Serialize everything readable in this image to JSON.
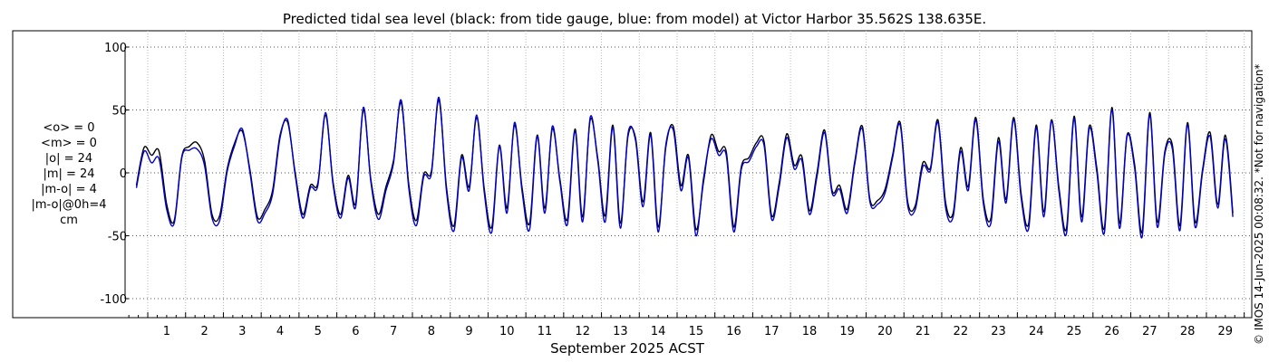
{
  "chart_data": {
    "type": "line",
    "title": "Predicted tidal sea level (black: from tide gauge, blue: from model) at Victor Harbor 35.562S 138.635E.",
    "xlabel": "September 2025 ACST",
    "ylabel": "",
    "x_unit": "day of September 2025",
    "xlim": [
      0.4,
      30.2
    ],
    "ylim": [
      -105,
      105
    ],
    "x_ticks": [
      1,
      2,
      3,
      4,
      5,
      6,
      7,
      8,
      9,
      10,
      11,
      12,
      13,
      14,
      15,
      16,
      17,
      18,
      19,
      20,
      21,
      22,
      23,
      24,
      25,
      26,
      27,
      28,
      29
    ],
    "y_ticks": [
      -100,
      -50,
      0,
      50,
      100
    ],
    "grid": true,
    "x_step": 0.1,
    "series": [
      {
        "name": "from tide gauge",
        "color": "#000000",
        "x_start": 0.7,
        "values": [
          -10,
          20,
          14,
          17,
          -25,
          -38,
          13,
          21,
          24,
          10,
          -33,
          -34,
          3,
          24,
          33,
          3,
          -35,
          -29,
          -14,
          30,
          40,
          0,
          -33,
          -10,
          -8,
          46,
          -7,
          -33,
          -2,
          -24,
          50,
          -5,
          -33,
          -11,
          10,
          56,
          -8,
          -38,
          -1,
          1,
          58,
          -11,
          -42,
          14,
          -11,
          44,
          -13,
          -43,
          22,
          -28,
          38,
          -12,
          -40,
          30,
          -28,
          35,
          -5,
          -37,
          35,
          -35,
          42,
          12,
          -34,
          38,
          -40,
          29,
          28,
          -23,
          32,
          -43,
          20,
          37,
          -10,
          14,
          -45,
          -7,
          30,
          17,
          17,
          -43,
          5,
          12,
          24,
          25,
          -34,
          -8,
          31,
          6,
          13,
          -30,
          0,
          34,
          -14,
          -10,
          -29,
          9,
          37,
          -21,
          -22,
          -13,
          14,
          40,
          -23,
          -26,
          8,
          4,
          42,
          -23,
          -32,
          20,
          -11,
          44,
          -21,
          -36,
          28,
          -21,
          44,
          -17,
          -40,
          38,
          -31,
          42,
          -12,
          -44,
          45,
          -35,
          37,
          4,
          -44,
          52,
          -40,
          30,
          7,
          -47,
          48,
          -39,
          17,
          22,
          -42,
          40,
          -39,
          3,
          32,
          -25,
          30,
          -32
        ]
      },
      {
        "name": "from model",
        "color": "#0000cc",
        "x_start": 0.7,
        "values": [
          -12,
          17,
          8,
          11,
          -29,
          -40,
          12,
          18,
          19,
          6,
          -36,
          -38,
          1,
          22,
          35,
          1,
          -38,
          -32,
          -17,
          28,
          42,
          -2,
          -36,
          -12,
          -10,
          48,
          -9,
          -36,
          -4,
          -27,
          52,
          -7,
          -37,
          -14,
          8,
          58,
          -11,
          -42,
          -3,
          -1,
          60,
          -14,
          -46,
          12,
          -14,
          46,
          -16,
          -47,
          21,
          -32,
          40,
          -15,
          -45,
          29,
          -32,
          37,
          -7,
          -41,
          33,
          -39,
          44,
          10,
          -39,
          36,
          -44,
          31,
          26,
          -27,
          30,
          -47,
          22,
          34,
          -14,
          12,
          -50,
          -4,
          27,
          14,
          14,
          -47,
          3,
          9,
          21,
          22,
          -37,
          -11,
          28,
          3,
          10,
          -33,
          -3,
          32,
          -16,
          -13,
          -32,
          7,
          35,
          -23,
          -25,
          -16,
          12,
          38,
          -26,
          -29,
          5,
          2,
          40,
          -27,
          -35,
          17,
          -14,
          42,
          -24,
          -40,
          25,
          -24,
          42,
          -20,
          -44,
          36,
          -35,
          41,
          -15,
          -48,
          43,
          -39,
          35,
          1,
          -48,
          50,
          -44,
          29,
          4,
          -51,
          46,
          -43,
          15,
          19,
          -46,
          38,
          -43,
          1,
          29,
          -28,
          27,
          -35
        ]
      }
    ]
  },
  "stats": {
    "mean_obs": "<o> = 0",
    "mean_model": "<m> = 0",
    "abs_obs": "|o| = 24",
    "abs_model": "|m| = 24",
    "abs_diff": "|m-o| = 4",
    "diff_0h": "|m-o|@0h=4",
    "unit": "cm"
  },
  "credit": "© IMOS 14-Jun-2025 00:08:32. *Not for navigation*"
}
